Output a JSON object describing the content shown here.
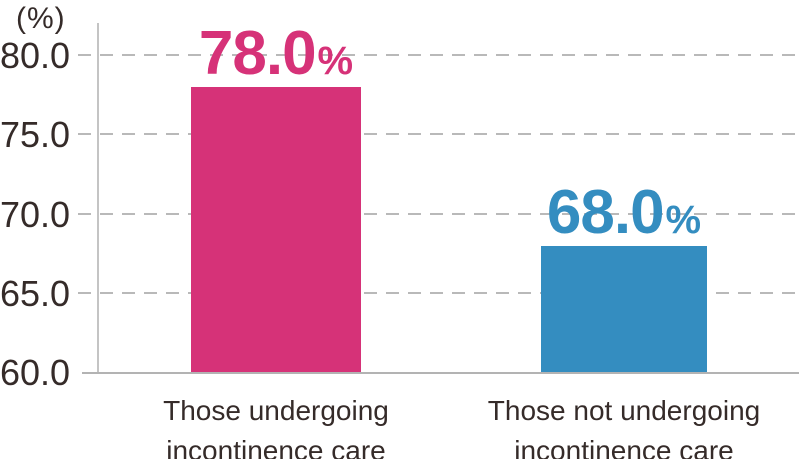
{
  "chart_data": {
    "type": "bar",
    "title": "",
    "unit_label": "(%)",
    "ylim": [
      60,
      80
    ],
    "ytick_step": 5,
    "ytick_labels": [
      "80.0",
      "75.0",
      "70.0",
      "65.0",
      "60.0"
    ],
    "grid": "horizontal-dashed",
    "legend": "none",
    "bars": [
      {
        "category_line1": "Those undergoing",
        "category_line2": "incontinence care",
        "value": 78.0,
        "value_label": "78.0",
        "unit": "%",
        "color": "#d63278"
      },
      {
        "category_line1": "Those not undergoing",
        "category_line2": "incontinence care",
        "value": 68.0,
        "value_label": "68.0",
        "unit": "%",
        "color": "#348dc0"
      }
    ]
  },
  "colors": {
    "bar_pink": "#d63278",
    "bar_blue": "#348dc0",
    "gridline": "#b9b9b9",
    "axis_line": "#c4c4c4",
    "baseline": "#b3b3b3",
    "text": "#352b29",
    "background": "#ffffff"
  }
}
